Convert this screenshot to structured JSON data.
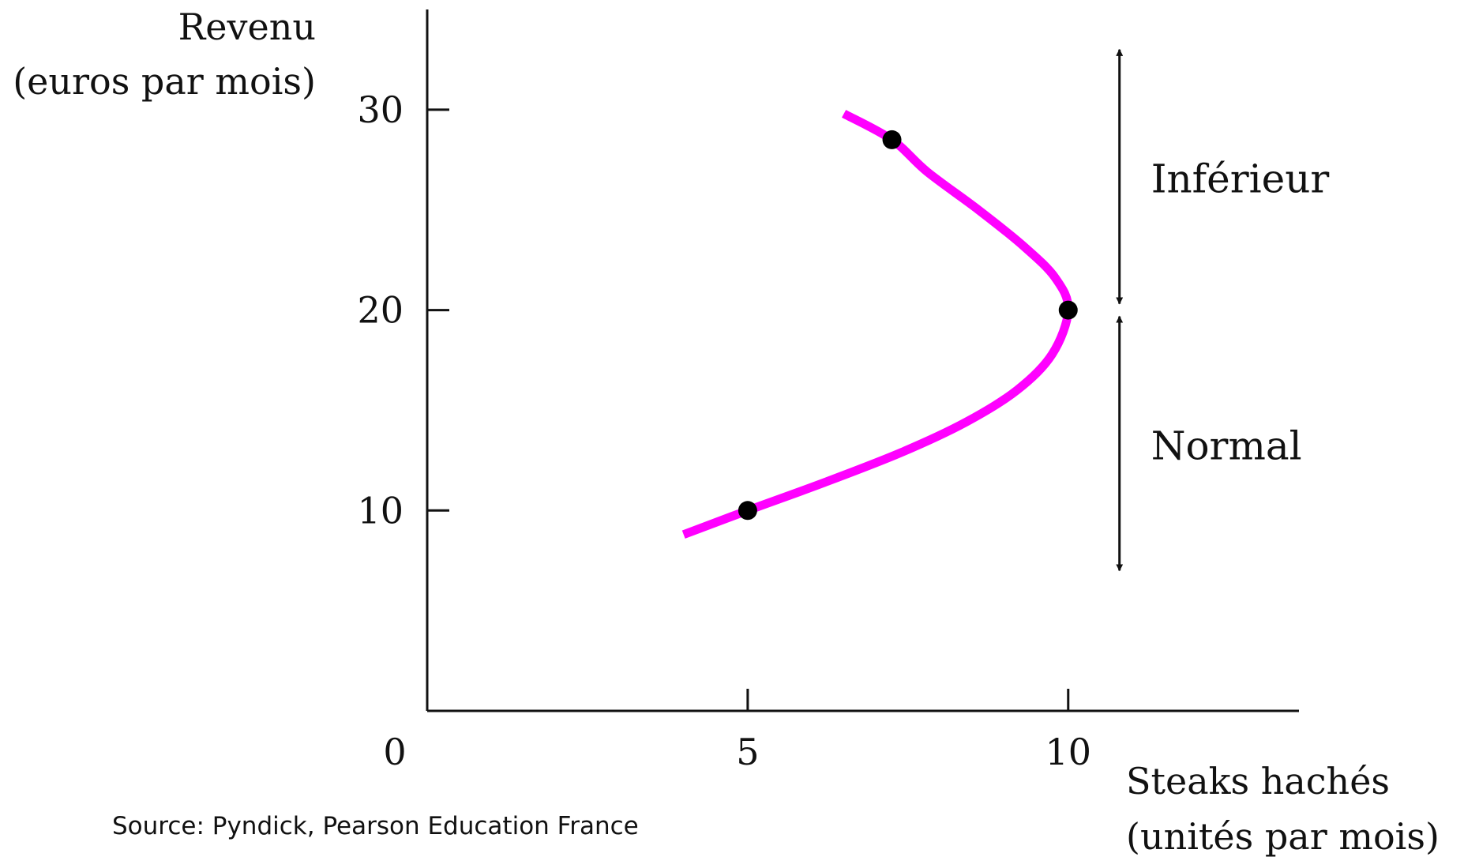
{
  "chart_data": {
    "type": "line",
    "ylabel_lines": [
      "Revenu",
      "(euros par mois)"
    ],
    "xlabel_lines": [
      "Steaks hachés",
      "(unités par mois)"
    ],
    "origin_label": "0",
    "x_ticks": [
      5,
      10
    ],
    "y_ticks": [
      10,
      20,
      30
    ],
    "xlim": [
      0,
      13.6
    ],
    "ylim": [
      0,
      35
    ],
    "series": [
      {
        "color": "#ff00ff",
        "points": [
          [
            4.0,
            8.8
          ],
          [
            5.0,
            10.0
          ],
          [
            6.2,
            11.4
          ],
          [
            7.4,
            12.9
          ],
          [
            8.4,
            14.4
          ],
          [
            9.2,
            16.0
          ],
          [
            9.75,
            17.8
          ],
          [
            10.0,
            20.0
          ],
          [
            9.8,
            21.6
          ],
          [
            9.3,
            23.2
          ],
          [
            8.6,
            25.0
          ],
          [
            7.8,
            26.9
          ],
          [
            7.25,
            28.5
          ],
          [
            6.5,
            29.8
          ]
        ],
        "markers": [
          [
            5.0,
            10.0
          ],
          [
            10.0,
            20.0
          ],
          [
            7.25,
            28.5
          ]
        ]
      }
    ],
    "annotations": [
      {
        "label": "Inférieur",
        "range": [
          20,
          33
        ]
      },
      {
        "label": "Normal",
        "range": [
          7,
          20
        ]
      }
    ],
    "grid": false
  },
  "source": "Source: Pyndick, Pearson Education France"
}
